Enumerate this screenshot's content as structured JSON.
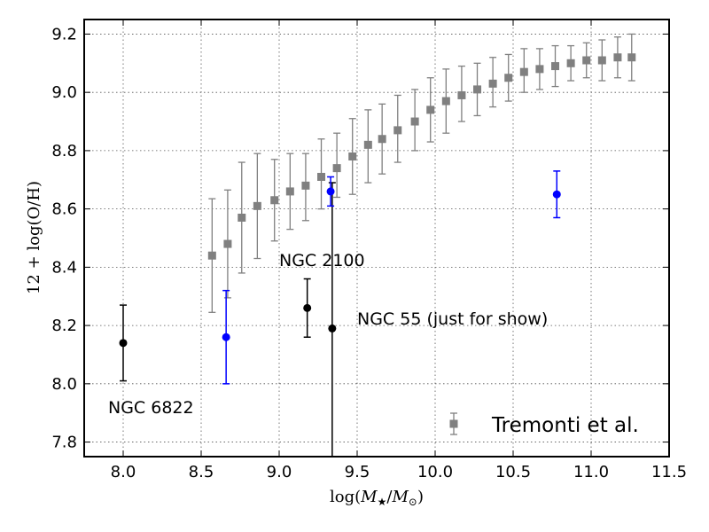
{
  "chart_data": {
    "type": "scatter",
    "title": "",
    "xlabel": "log(M★/M⊙)",
    "ylabel": "12 + log(O/H)",
    "xlim": [
      7.75,
      11.5
    ],
    "ylim": [
      7.75,
      9.25
    ],
    "xticks": [
      "8.0",
      "8.5",
      "9.0",
      "9.5",
      "10.0",
      "10.5",
      "11.0",
      "11.5"
    ],
    "yticks": [
      "7.8",
      "8.0",
      "8.2",
      "8.4",
      "8.6",
      "8.8",
      "9.0",
      "9.2"
    ],
    "grid": true,
    "legend_placement": "bottom-right",
    "series": [
      {
        "name": "Tremonti et al.",
        "marker": "square",
        "color": "#808080",
        "x": [
          8.57,
          8.67,
          8.76,
          8.86,
          8.97,
          9.07,
          9.17,
          9.27,
          9.37,
          9.47,
          9.57,
          9.66,
          9.76,
          9.87,
          9.97,
          10.07,
          10.17,
          10.27,
          10.37,
          10.47,
          10.57,
          10.67,
          10.77,
          10.87,
          10.97,
          11.07,
          11.17,
          11.26
        ],
        "y": [
          8.44,
          8.48,
          8.57,
          8.61,
          8.63,
          8.66,
          8.68,
          8.71,
          8.74,
          8.78,
          8.82,
          8.84,
          8.87,
          8.9,
          8.94,
          8.97,
          8.99,
          9.01,
          9.03,
          9.05,
          9.07,
          9.08,
          9.09,
          9.1,
          9.11,
          9.11,
          9.12,
          9.12
        ],
        "yerr_low": [
          0.195,
          0.185,
          0.19,
          0.18,
          0.14,
          0.13,
          0.12,
          0.11,
          0.1,
          0.13,
          0.13,
          0.12,
          0.11,
          0.1,
          0.11,
          0.11,
          0.09,
          0.09,
          0.08,
          0.08,
          0.07,
          0.07,
          0.07,
          0.06,
          0.06,
          0.07,
          0.07,
          0.08
        ],
        "yerr_high": [
          0.195,
          0.185,
          0.19,
          0.18,
          0.14,
          0.13,
          0.11,
          0.13,
          0.12,
          0.13,
          0.12,
          0.12,
          0.12,
          0.11,
          0.11,
          0.11,
          0.1,
          0.09,
          0.09,
          0.08,
          0.08,
          0.07,
          0.07,
          0.06,
          0.06,
          0.07,
          0.07,
          0.08
        ]
      },
      {
        "name": "",
        "marker": "circle",
        "color": "#000000",
        "x": [
          8.0,
          9.18,
          9.34
        ],
        "y": [
          8.14,
          8.26,
          8.19
        ],
        "yerr_low": [
          0.13,
          0.1,
          0.5
        ],
        "yerr_high": [
          0.13,
          0.1,
          0.5
        ],
        "labels": [
          "NGC 6822",
          "NGC 2100",
          "NGC 55 (just for show)"
        ]
      },
      {
        "name": "",
        "marker": "circle",
        "color": "#0000ff",
        "x": [
          8.66,
          9.33,
          10.78
        ],
        "y": [
          8.16,
          8.66,
          8.65
        ],
        "yerr_low": [
          0.16,
          0.05,
          0.08
        ],
        "yerr_high": [
          0.16,
          0.05,
          0.08
        ]
      }
    ]
  }
}
